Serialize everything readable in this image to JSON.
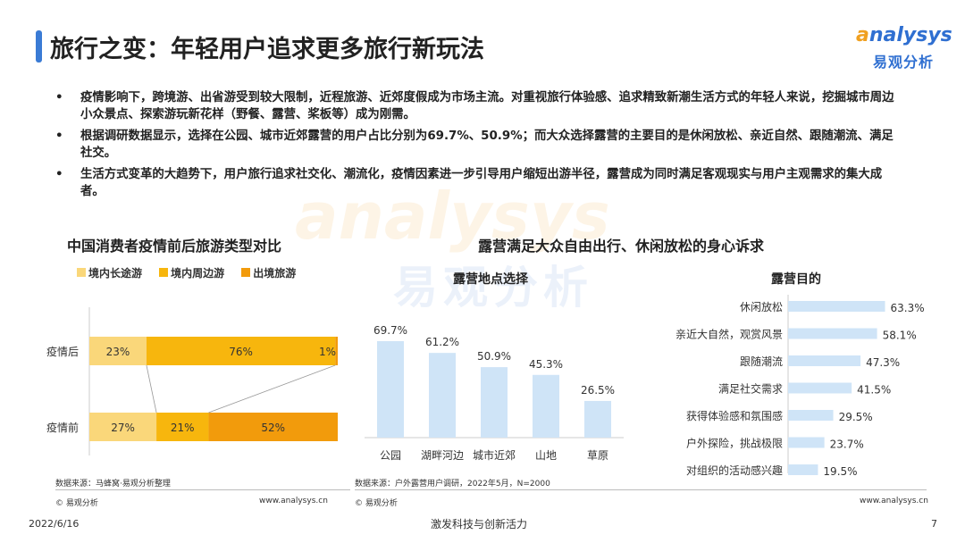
{
  "page_title": "旅行之变：年轻用户追求更多旅行新玩法",
  "logo": {
    "en": "nalysys",
    "en_prefix": "a",
    "cn": "易观分析"
  },
  "bullet_symbol": "•",
  "bullets": [
    "疫情影响下，跨境游、出省游受到较大限制，近程旅游、近郊度假成为市场主流。对重视旅行体验感、追求精致新潮生活方式的年轻人来说，挖掘城市周边小众景点、探索游玩新花样（野餐、露营、桨板等）成为刚需。",
    "根据调研数据显示，选择在公园、城市近郊露营的用户占比分别为69.7%、50.9%；而大众选择露营的主要目的是休闲放松、亲近自然、跟随潮流、满足社交。",
    "生活方式变革的大趋势下，用户旅行追求社交化、潮流化，疫情因素进一步引导用户缩短出游半径，露营成为同时满足客观现实与用户主观需求的集大成者。"
  ],
  "watermark": {
    "en": "analysys",
    "cn": "易观分析"
  },
  "colors": {
    "long": "#fad77a",
    "near": "#f7b60d",
    "abroad": "#f29b0c",
    "bar_blue": "#cfe4f7",
    "accent": "#3a7bd5"
  },
  "chart_data": [
    {
      "type": "bar",
      "orientation": "horizontal-stacked",
      "title": "中国消费者疫情前后旅游类型对比",
      "categories": [
        "疫情后",
        "疫情前"
      ],
      "series": [
        {
          "name": "境内长途游",
          "values": [
            23,
            27
          ],
          "labels": [
            "23%",
            "27%"
          ]
        },
        {
          "name": "境内周边游",
          "values": [
            76,
            21
          ],
          "labels": [
            "76%",
            "21%"
          ]
        },
        {
          "name": "出境旅游",
          "values": [
            1,
            52
          ],
          "labels": [
            "1%",
            "52%"
          ]
        }
      ],
      "legend": "top",
      "source": "数据来源：马蜂窝·易观分析整理"
    },
    {
      "type": "bar",
      "orientation": "vertical",
      "group_title": "露营满足大众自由出行、休闲放松的身心诉求",
      "title": "露营地点选择",
      "categories": [
        "公园",
        "湖畔河边",
        "城市近郊",
        "山地",
        "草原"
      ],
      "values": [
        69.7,
        61.2,
        50.9,
        45.3,
        26.5
      ],
      "labels": [
        "69.7%",
        "61.2%",
        "50.9%",
        "45.3%",
        "26.5%"
      ],
      "ylim": [
        0,
        80
      ]
    },
    {
      "type": "bar",
      "orientation": "horizontal",
      "title": "露营目的",
      "categories": [
        "休闲放松",
        "亲近大自然，观赏风景",
        "跟随潮流",
        "满足社交需求",
        "获得体验感和氛围感",
        "户外探险，挑战极限",
        "对组织的活动感兴趣"
      ],
      "values": [
        63.3,
        58.1,
        47.3,
        41.5,
        29.5,
        23.7,
        19.5
      ],
      "labels": [
        "63.3%",
        "58.1%",
        "47.3%",
        "41.5%",
        "29.5%",
        "23.7%",
        "19.5%"
      ],
      "xlim": [
        0,
        70
      ],
      "source": "数据来源：户外露营用户调研，2022年5月，N=2000"
    }
  ],
  "footer": {
    "copyright_left": "© 易观分析",
    "url_left": "www.analysys.cn",
    "copyright_right": "© 易观分析",
    "url_right": "www.analysys.cn",
    "date": "2022/6/16",
    "slogan": "激发科技与创新活力",
    "page_number": "7"
  }
}
